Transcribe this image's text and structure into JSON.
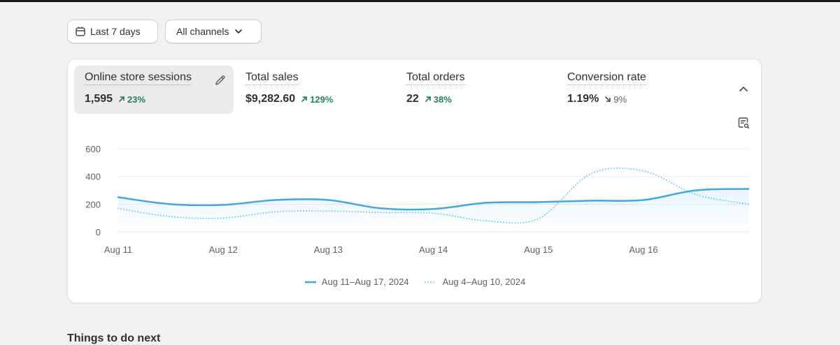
{
  "filters": {
    "date_range_label": "Last 7 days",
    "channel_label": "All channels"
  },
  "metrics": [
    {
      "label": "Online store sessions",
      "value": "1,595",
      "delta": "23%",
      "direction": "up",
      "active": true
    },
    {
      "label": "Total sales",
      "value": "$9,282.60",
      "delta": "129%",
      "direction": "up",
      "active": false
    },
    {
      "label": "Total orders",
      "value": "22",
      "delta": "38%",
      "direction": "up",
      "active": false
    },
    {
      "label": "Conversion rate",
      "value": "1.19%",
      "delta": "9%",
      "direction": "down",
      "active": false
    }
  ],
  "icons": {
    "date": "calendar-icon",
    "channel_chevron": "chevron-down-icon",
    "edit": "pencil-icon",
    "collapse": "chevron-up-icon",
    "report": "report-search-icon"
  },
  "colors": {
    "current_series": "#3fa8e0",
    "previous_series": "#7fcbee",
    "positive_delta": "#29845a",
    "neutral_delta": "#616161"
  },
  "chart_data": {
    "type": "line",
    "title": "",
    "xlabel": "",
    "ylabel": "",
    "ylim": [
      0,
      600
    ],
    "yticks": [
      0,
      200,
      400,
      600
    ],
    "categories": [
      "Aug 11",
      "Aug 12",
      "Aug 13",
      "Aug 14",
      "Aug 15",
      "Aug 16"
    ],
    "x": [
      0,
      0.5,
      1,
      1.5,
      2,
      2.5,
      3,
      3.5,
      4,
      4.5,
      5,
      5.5,
      6
    ],
    "series": [
      {
        "name": "Aug 11–Aug 17, 2024",
        "style": "solid",
        "values": [
          250,
          200,
          195,
          230,
          230,
          170,
          165,
          210,
          215,
          225,
          230,
          300,
          310
        ]
      },
      {
        "name": "Aug 4–Aug 10, 2024",
        "style": "dotted",
        "values": [
          170,
          110,
          100,
          145,
          150,
          140,
          135,
          80,
          95,
          420,
          440,
          270,
          200
        ]
      }
    ],
    "legend_position": "bottom-center",
    "grid": true
  },
  "partial_heading": "Things to do next"
}
